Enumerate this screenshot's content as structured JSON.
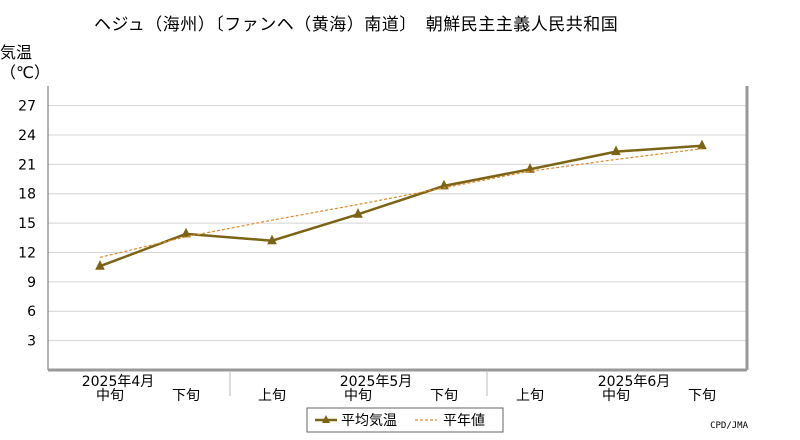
{
  "chart_data": {
    "type": "line",
    "title": "ヘジュ（海州）〔ファンヘ（黄海）南道〕　朝鮮民主主義人民共和国",
    "ylabel": "気温",
    "yunit": "（℃）",
    "ylim": [
      0,
      29
    ],
    "yticks": [
      3,
      6,
      9,
      12,
      15,
      18,
      21,
      24,
      27
    ],
    "grid": true,
    "x": [
      "中旬",
      "下旬",
      "上旬",
      "中旬",
      "下旬",
      "上旬",
      "中旬",
      "下旬"
    ],
    "month_labels": [
      {
        "label": "2025年4月",
        "at": 0
      },
      {
        "label": "2025年5月",
        "at": 3
      },
      {
        "label": "2025年6月",
        "at": 6
      }
    ],
    "series": [
      {
        "name": "平均気温",
        "color": "#7b6416",
        "style": "solid",
        "marker": "triangle",
        "values": [
          10.6,
          13.9,
          13.2,
          15.9,
          18.8,
          20.5,
          22.3,
          22.9
        ]
      },
      {
        "name": "平年値",
        "color": "#e08a2c",
        "style": "dashed",
        "marker": "none",
        "values": [
          11.5,
          13.6,
          15.3,
          16.9,
          18.6,
          20.3,
          21.5,
          22.6
        ]
      }
    ],
    "legend": "bottom-center"
  },
  "credit": "CPD/JMA"
}
